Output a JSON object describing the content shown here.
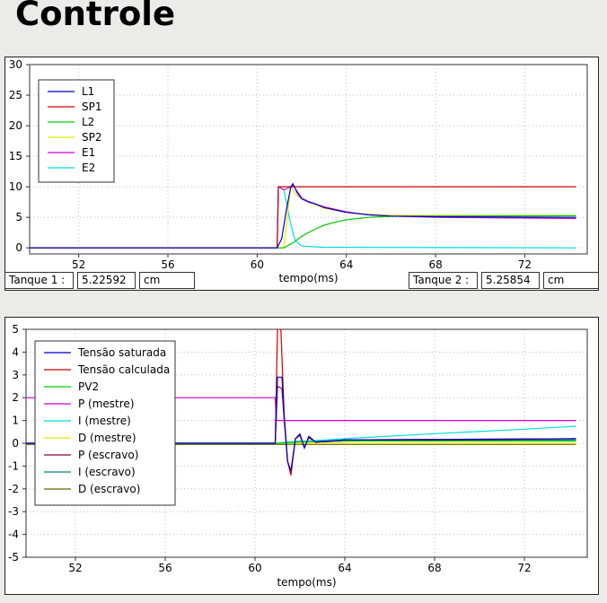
{
  "page": {
    "title": "Controle"
  },
  "status_bar": {
    "tank1": {
      "label": "Tanque 1 :",
      "value": "5.22592",
      "unit": "cm"
    },
    "tank2": {
      "label": "Tanque 2 :",
      "value": "5.25854",
      "unit": "cm"
    }
  },
  "chart_data": [
    {
      "type": "line",
      "title": "",
      "xlabel": "tempo(ms)",
      "ylabel": "",
      "xlim": [
        49.8,
        74.8
      ],
      "ylim": [
        -1,
        30
      ],
      "xticks": [
        52,
        56,
        60,
        64,
        68,
        72
      ],
      "yticks": [
        0,
        5,
        10,
        15,
        20,
        25,
        30
      ],
      "grid": true,
      "legend_position": "top-left",
      "series": [
        {
          "name": "L1",
          "color": "#0000cc",
          "points": [
            [
              49.8,
              0
            ],
            [
              60.9,
              0
            ],
            [
              61.1,
              1.5
            ],
            [
              61.3,
              6
            ],
            [
              61.5,
              9.8
            ],
            [
              61.6,
              10.5
            ],
            [
              61.8,
              9
            ],
            [
              62.0,
              8
            ],
            [
              62.3,
              7.5
            ],
            [
              62.6,
              7.2
            ],
            [
              63,
              6.6
            ],
            [
              64,
              5.8
            ],
            [
              65,
              5.4
            ],
            [
              66,
              5.2
            ],
            [
              68,
              5.1
            ],
            [
              74.3,
              5.0
            ]
          ]
        },
        {
          "name": "SP1",
          "color": "#cc0000",
          "points": [
            [
              49.8,
              0
            ],
            [
              60.9,
              0
            ],
            [
              60.95,
              10
            ],
            [
              74.3,
              10
            ]
          ]
        },
        {
          "name": "L2",
          "color": "#00cc00",
          "points": [
            [
              49.8,
              0
            ],
            [
              61.2,
              0
            ],
            [
              61.6,
              0.8
            ],
            [
              62,
              1.9
            ],
            [
              62.5,
              2.9
            ],
            [
              63,
              3.7
            ],
            [
              63.5,
              4.2
            ],
            [
              64,
              4.6
            ],
            [
              65,
              5.0
            ],
            [
              66,
              5.15
            ],
            [
              68,
              5.2
            ],
            [
              74.3,
              5.25
            ]
          ]
        },
        {
          "name": "SP2",
          "color": "#e8e800",
          "points": [
            [
              49.8,
              0
            ],
            [
              61.2,
              0
            ],
            [
              61.5,
              10
            ],
            [
              61.8,
              8.5
            ],
            [
              62.3,
              7.5
            ],
            [
              63,
              6.5
            ],
            [
              64,
              5.8
            ],
            [
              65,
              5.5
            ],
            [
              66,
              5.35
            ],
            [
              68,
              5.3
            ],
            [
              74.3,
              5.3
            ]
          ]
        },
        {
          "name": "E1",
          "color": "#cc00cc",
          "points": [
            [
              49.8,
              0
            ],
            [
              60.9,
              0
            ],
            [
              60.95,
              10
            ],
            [
              61.2,
              9.5
            ],
            [
              61.4,
              9.8
            ],
            [
              61.6,
              10.3
            ],
            [
              61.8,
              9.2
            ],
            [
              62.0,
              8.2
            ],
            [
              62.3,
              7.6
            ],
            [
              62.6,
              7.2
            ],
            [
              63,
              6.7
            ],
            [
              64,
              5.9
            ],
            [
              65,
              5.4
            ],
            [
              66,
              5.2
            ],
            [
              68,
              5.0
            ],
            [
              74.3,
              4.8
            ]
          ]
        },
        {
          "name": "E2",
          "color": "#00dddd",
          "points": [
            [
              49.8,
              0
            ],
            [
              60.9,
              0
            ],
            [
              60.95,
              10
            ],
            [
              61.2,
              9.5
            ],
            [
              61.5,
              4
            ],
            [
              61.7,
              1.2
            ],
            [
              62,
              0.3
            ],
            [
              63,
              0.1
            ],
            [
              74.3,
              0
            ]
          ]
        }
      ]
    },
    {
      "type": "line",
      "title": "",
      "xlabel": "tempo(ms)",
      "ylabel": "",
      "xlim": [
        49.8,
        74.8
      ],
      "ylim": [
        -5,
        5
      ],
      "xticks": [
        52,
        56,
        60,
        64,
        68,
        72
      ],
      "yticks": [
        -5,
        -4,
        -3,
        -2,
        -1,
        0,
        1,
        2,
        3,
        4,
        5
      ],
      "grid": true,
      "legend_position": "top-left",
      "series": [
        {
          "name": "Tensão saturada",
          "color": "#0000cc",
          "points": [
            [
              49.8,
              0
            ],
            [
              60.9,
              0
            ],
            [
              61.0,
              2.9
            ],
            [
              61.2,
              2.9
            ],
            [
              61.3,
              1.2
            ],
            [
              61.45,
              -0.8
            ],
            [
              61.6,
              -1.2
            ],
            [
              61.8,
              0.2
            ],
            [
              62.0,
              0.4
            ],
            [
              62.2,
              -0.2
            ],
            [
              62.4,
              0.3
            ],
            [
              62.7,
              0.05
            ],
            [
              64,
              0.15
            ],
            [
              74.3,
              0.2
            ]
          ]
        },
        {
          "name": "Tensão calculada",
          "color": "#cc0000",
          "points": [
            [
              49.8,
              0
            ],
            [
              60.9,
              0
            ],
            [
              61.0,
              5
            ],
            [
              61.15,
              5
            ],
            [
              61.3,
              1.2
            ],
            [
              61.45,
              -0.8
            ],
            [
              61.6,
              -1.4
            ],
            [
              61.8,
              0.2
            ],
            [
              62.0,
              0.4
            ],
            [
              62.2,
              -0.2
            ],
            [
              62.4,
              0.3
            ],
            [
              62.7,
              0.05
            ],
            [
              64,
              0.15
            ],
            [
              74.3,
              0.2
            ]
          ]
        },
        {
          "name": "PV2",
          "color": "#00cc00",
          "points": [
            [
              49.8,
              0
            ],
            [
              61.2,
              0
            ],
            [
              62,
              0.05
            ],
            [
              64,
              0.1
            ],
            [
              74.3,
              0.1
            ]
          ]
        },
        {
          "name": "P (mestre)",
          "color": "#cc00cc",
          "points": [
            [
              49.8,
              2
            ],
            [
              60.9,
              2
            ],
            [
              60.95,
              1.0
            ],
            [
              74.3,
              1.0
            ]
          ]
        },
        {
          "name": "I (mestre)",
          "color": "#00dddd",
          "points": [
            [
              49.8,
              0
            ],
            [
              60.9,
              0
            ],
            [
              61.5,
              0.05
            ],
            [
              64,
              0.2
            ],
            [
              68,
              0.42
            ],
            [
              72,
              0.62
            ],
            [
              74.3,
              0.75
            ]
          ]
        },
        {
          "name": "D (mestre)",
          "color": "#e8e800",
          "points": [
            [
              49.8,
              0
            ],
            [
              74.3,
              0
            ]
          ]
        },
        {
          "name": "P (escravo)",
          "color": "#880044",
          "points": [
            [
              49.8,
              0
            ],
            [
              60.9,
              0
            ],
            [
              61.0,
              2.5
            ],
            [
              61.2,
              2.4
            ],
            [
              61.3,
              1.0
            ],
            [
              61.45,
              -0.8
            ],
            [
              61.6,
              -1.3
            ],
            [
              61.8,
              0.2
            ],
            [
              62.0,
              0.35
            ],
            [
              62.2,
              -0.2
            ],
            [
              62.4,
              0.25
            ],
            [
              62.7,
              0.05
            ],
            [
              64,
              0.1
            ],
            [
              74.3,
              0.2
            ]
          ]
        },
        {
          "name": "I (escravo)",
          "color": "#008888",
          "points": [
            [
              49.8,
              0
            ],
            [
              60.9,
              0
            ],
            [
              62,
              0.1
            ],
            [
              74.3,
              0.15
            ]
          ]
        },
        {
          "name": "D (escravo)",
          "color": "#666600",
          "points": [
            [
              49.8,
              -0.05
            ],
            [
              74.3,
              -0.05
            ]
          ]
        }
      ]
    }
  ]
}
